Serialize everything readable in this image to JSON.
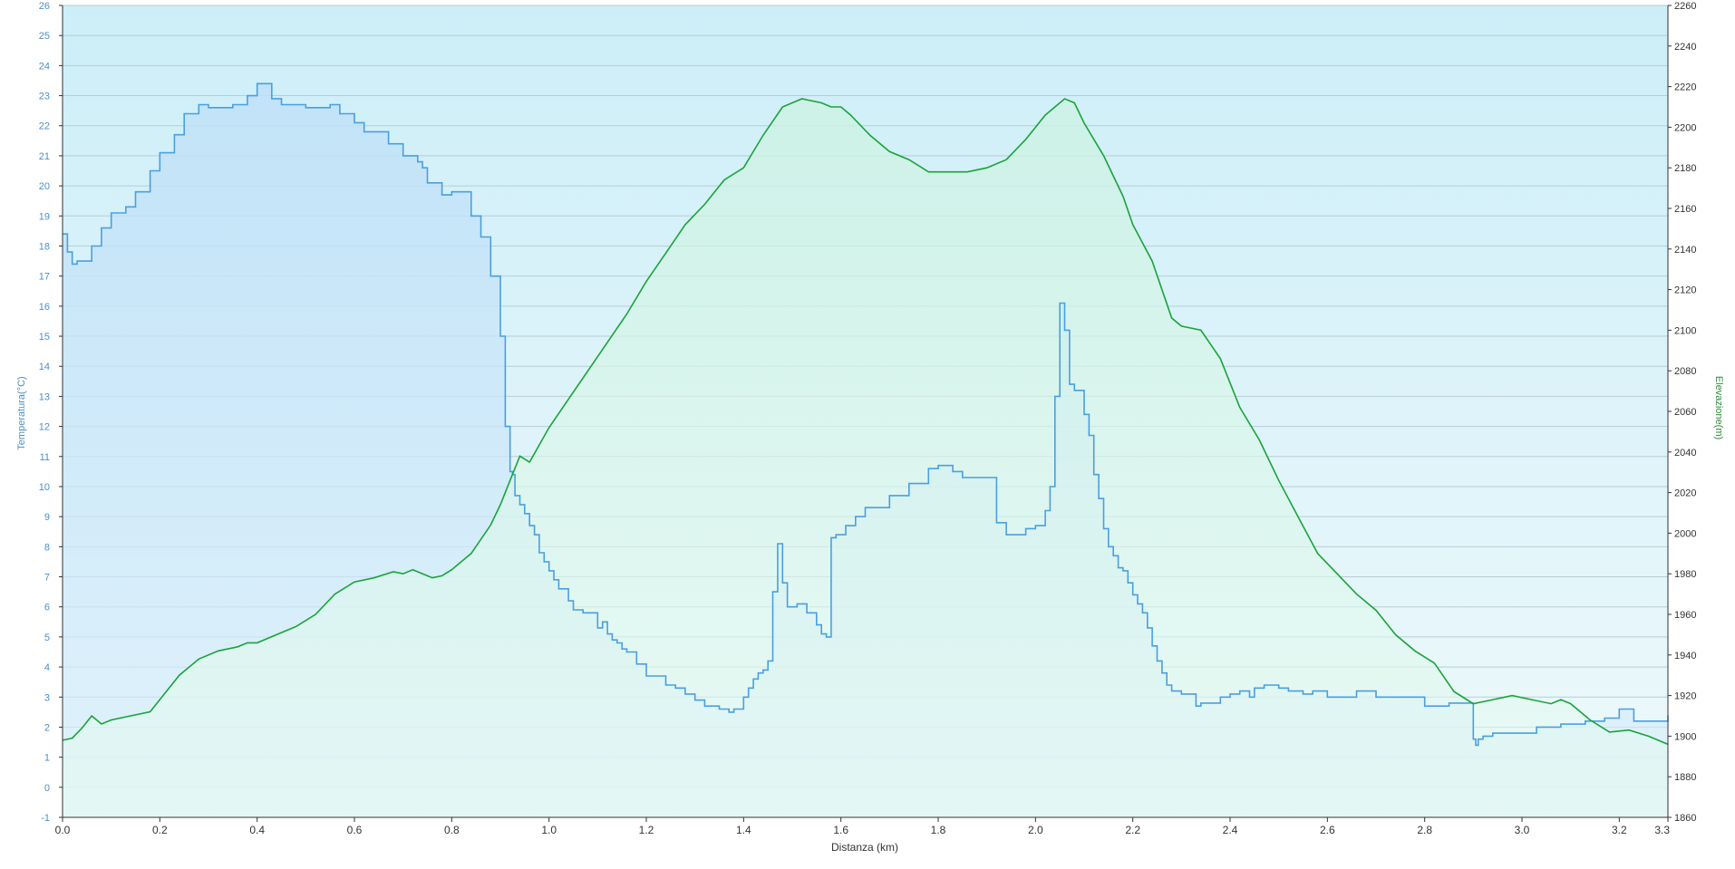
{
  "chart_data": {
    "type": "line",
    "xlabel": "Distanza  (km)",
    "ylabel_left": "Temperatura(°C)",
    "ylabel_right": "Elevazione(m)",
    "xlim": [
      0,
      3.3
    ],
    "ylim_left": [
      -1,
      26
    ],
    "ylim_right": [
      1860,
      2260
    ],
    "x_ticks": [
      "0.0",
      "0.2",
      "0.4",
      "0.6",
      "0.8",
      "1.0",
      "1.2",
      "1.4",
      "1.6",
      "1.8",
      "2.0",
      "2.2",
      "2.4",
      "2.6",
      "2.8",
      "3.0",
      "3.2",
      "3.3"
    ],
    "y_ticks_left": [
      -1,
      0,
      1,
      2,
      3,
      4,
      5,
      6,
      7,
      8,
      9,
      10,
      11,
      12,
      13,
      14,
      15,
      16,
      17,
      18,
      19,
      20,
      21,
      22,
      23,
      24,
      25,
      26
    ],
    "y_ticks_right": [
      1860,
      1880,
      1900,
      1920,
      1940,
      1960,
      1980,
      2000,
      2020,
      2040,
      2060,
      2080,
      2100,
      2120,
      2140,
      2160,
      2180,
      2200,
      2220,
      2240,
      2260
    ],
    "grid": true,
    "colors": {
      "temperature_line": "#4a9fe0",
      "temperature_fill": "#c5e3f7",
      "elevation_line": "#1aa33a",
      "elevation_fill": "#d6f5ea",
      "background_top": "#cfeef8",
      "background_bottom": "#eef9fb",
      "grid": "#b9cfd6",
      "axis_text_left": "#4a8fc8",
      "axis_text_right": "#333333",
      "ylabel_right_color": "#2e8b3a"
    },
    "series": [
      {
        "axis": "left",
        "step": true,
        "x": [
          0.0,
          0.01,
          0.02,
          0.03,
          0.06,
          0.08,
          0.1,
          0.13,
          0.15,
          0.18,
          0.2,
          0.23,
          0.25,
          0.28,
          0.3,
          0.33,
          0.35,
          0.36,
          0.38,
          0.4,
          0.43,
          0.45,
          0.5,
          0.52,
          0.55,
          0.57,
          0.6,
          0.62,
          0.67,
          0.7,
          0.73,
          0.74,
          0.75,
          0.78,
          0.8,
          0.84,
          0.86,
          0.88,
          0.9,
          0.91,
          0.92,
          0.925,
          0.93,
          0.94,
          0.95,
          0.96,
          0.97,
          0.98,
          0.99,
          1.0,
          1.01,
          1.02,
          1.04,
          1.05,
          1.07,
          1.1,
          1.11,
          1.12,
          1.13,
          1.14,
          1.15,
          1.16,
          1.18,
          1.2,
          1.24,
          1.26,
          1.28,
          1.3,
          1.32,
          1.35,
          1.37,
          1.38,
          1.4,
          1.41,
          1.42,
          1.43,
          1.44,
          1.45,
          1.46,
          1.47,
          1.48,
          1.49,
          1.5,
          1.51,
          1.53,
          1.55,
          1.56,
          1.57,
          1.58,
          1.59,
          1.6,
          1.61,
          1.63,
          1.65,
          1.7,
          1.74,
          1.78,
          1.8,
          1.83,
          1.85,
          1.87,
          1.89,
          1.92,
          1.94,
          1.96,
          1.98,
          2.0,
          2.02,
          2.03,
          2.04,
          2.05,
          2.06,
          2.07,
          2.08,
          2.1,
          2.11,
          2.12,
          2.13,
          2.14,
          2.15,
          2.16,
          2.17,
          2.18,
          2.19,
          2.2,
          2.21,
          2.22,
          2.23,
          2.24,
          2.25,
          2.26,
          2.27,
          2.28,
          2.3,
          2.32,
          2.33,
          2.34,
          2.36,
          2.38,
          2.4,
          2.42,
          2.44,
          2.45,
          2.47,
          2.5,
          2.52,
          2.55,
          2.57,
          2.6,
          2.63,
          2.66,
          2.7,
          2.75,
          2.8,
          2.85,
          2.9,
          2.905,
          2.91,
          2.92,
          2.94,
          2.97,
          3.0,
          3.03,
          3.05,
          3.08,
          3.1,
          3.13,
          3.15,
          3.17,
          3.2,
          3.23,
          3.25,
          3.28,
          3.3
        ],
        "values": [
          18.4,
          17.8,
          17.4,
          17.5,
          18.0,
          18.6,
          19.1,
          19.3,
          19.8,
          20.5,
          21.1,
          21.7,
          22.4,
          22.7,
          22.6,
          22.6,
          22.7,
          22.7,
          23.0,
          23.4,
          22.9,
          22.7,
          22.6,
          22.6,
          22.7,
          22.4,
          22.1,
          21.8,
          21.4,
          21.0,
          20.8,
          20.6,
          20.1,
          19.7,
          19.8,
          19.0,
          18.3,
          17.0,
          15.0,
          12.0,
          10.5,
          10.4,
          9.7,
          9.4,
          9.1,
          8.7,
          8.4,
          7.8,
          7.5,
          7.2,
          6.9,
          6.6,
          6.2,
          5.9,
          5.8,
          5.3,
          5.5,
          5.1,
          4.9,
          4.8,
          4.6,
          4.5,
          4.1,
          3.7,
          3.4,
          3.3,
          3.1,
          2.9,
          2.7,
          2.6,
          2.5,
          2.6,
          3.0,
          3.3,
          3.6,
          3.8,
          3.9,
          4.2,
          6.5,
          8.1,
          6.8,
          6.0,
          6.0,
          6.1,
          5.8,
          5.4,
          5.1,
          5.0,
          8.3,
          8.4,
          8.4,
          8.7,
          9.0,
          9.3,
          9.7,
          10.1,
          10.6,
          10.7,
          10.5,
          10.3,
          10.3,
          10.3,
          8.8,
          8.4,
          8.4,
          8.6,
          8.7,
          9.2,
          10.0,
          13.0,
          16.1,
          15.2,
          13.4,
          13.2,
          12.4,
          11.7,
          10.4,
          9.6,
          8.6,
          8.0,
          7.7,
          7.3,
          7.2,
          6.8,
          6.4,
          6.1,
          5.8,
          5.3,
          4.7,
          4.2,
          3.8,
          3.4,
          3.2,
          3.1,
          3.1,
          2.7,
          2.8,
          2.8,
          3.0,
          3.1,
          3.2,
          3.0,
          3.3,
          3.4,
          3.3,
          3.2,
          3.1,
          3.2,
          3.0,
          3.0,
          3.2,
          3.0,
          3.0,
          2.7,
          2.8,
          1.6,
          1.4,
          1.6,
          1.7,
          1.8,
          1.8,
          1.8,
          2.0,
          2.0,
          2.1,
          2.1,
          2.2,
          2.2,
          2.3,
          2.6,
          2.2,
          2.2,
          2.2,
          2.4
        ]
      },
      {
        "axis": "right",
        "step": false,
        "x": [
          0.0,
          0.02,
          0.04,
          0.06,
          0.08,
          0.1,
          0.14,
          0.18,
          0.2,
          0.24,
          0.28,
          0.32,
          0.36,
          0.38,
          0.4,
          0.44,
          0.48,
          0.52,
          0.56,
          0.6,
          0.64,
          0.68,
          0.7,
          0.72,
          0.76,
          0.78,
          0.8,
          0.84,
          0.88,
          0.9,
          0.92,
          0.94,
          0.96,
          1.0,
          1.04,
          1.08,
          1.12,
          1.16,
          1.2,
          1.24,
          1.28,
          1.32,
          1.36,
          1.4,
          1.44,
          1.48,
          1.5,
          1.52,
          1.56,
          1.58,
          1.6,
          1.62,
          1.66,
          1.7,
          1.74,
          1.78,
          1.82,
          1.86,
          1.9,
          1.94,
          1.98,
          2.02,
          2.04,
          2.06,
          2.08,
          2.1,
          2.14,
          2.18,
          2.2,
          2.24,
          2.28,
          2.3,
          2.34,
          2.38,
          2.42,
          2.46,
          2.5,
          2.54,
          2.58,
          2.62,
          2.66,
          2.7,
          2.74,
          2.78,
          2.82,
          2.86,
          2.9,
          2.94,
          2.98,
          3.02,
          3.06,
          3.08,
          3.1,
          3.14,
          3.18,
          3.22,
          3.26,
          3.3
        ],
        "values": [
          1898,
          1899,
          1904,
          1910,
          1906,
          1908,
          1910,
          1912,
          1918,
          1930,
          1938,
          1942,
          1944,
          1946,
          1946,
          1950,
          1954,
          1960,
          1970,
          1976,
          1978,
          1981,
          1980,
          1982,
          1978,
          1979,
          1982,
          1990,
          2004,
          2014,
          2026,
          2038,
          2035,
          2052,
          2066,
          2080,
          2094,
          2108,
          2124,
          2138,
          2152,
          2162,
          2174,
          2180,
          2196,
          2210,
          2212,
          2214,
          2212,
          2210,
          2210,
          2206,
          2196,
          2188,
          2184,
          2178,
          2178,
          2178,
          2180,
          2184,
          2194,
          2206,
          2210,
          2214,
          2212,
          2202,
          2186,
          2166,
          2152,
          2134,
          2106,
          2102,
          2100,
          2086,
          2062,
          2046,
          2026,
          2008,
          1990,
          1980,
          1970,
          1962,
          1950,
          1942,
          1936,
          1922,
          1916,
          1918,
          1920,
          1918,
          1916,
          1918,
          1916,
          1908,
          1902,
          1903,
          1900,
          1896
        ]
      }
    ]
  }
}
